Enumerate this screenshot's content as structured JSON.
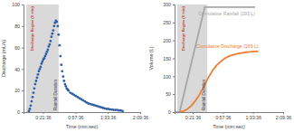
{
  "chart_data": [
    {
      "type": "scatter",
      "ylabel": "Discharge (mL/s)",
      "xlabel": "Time (min:sec)",
      "marker": "circle",
      "color": "#2e5fa8",
      "x": [
        6,
        7,
        8,
        9,
        10,
        11,
        12,
        13,
        14,
        15,
        16,
        17,
        18,
        19,
        20,
        21,
        22,
        23,
        24,
        25,
        26,
        27,
        28,
        29,
        30,
        31,
        32,
        33,
        34,
        35,
        36,
        37,
        38,
        39,
        40,
        41,
        42,
        43,
        44,
        45,
        46,
        47,
        48,
        49,
        50,
        52,
        54,
        56,
        58,
        60,
        62,
        64,
        66,
        68,
        70,
        72,
        74,
        76,
        78,
        80,
        82,
        84,
        86,
        88,
        90,
        92,
        94,
        96,
        98,
        100,
        102,
        104,
        106,
        108,
        110
      ],
      "values": [
        1,
        3,
        6,
        10,
        14,
        18,
        22,
        26,
        29,
        32,
        35,
        38,
        40,
        42,
        45,
        47,
        49,
        50,
        52,
        54,
        56,
        58,
        61,
        63,
        66,
        70,
        73,
        76,
        80,
        83,
        85,
        84,
        80,
        72,
        62,
        52,
        44,
        38,
        33,
        29,
        26,
        24,
        22,
        21,
        20,
        18,
        17,
        16,
        15,
        14,
        13,
        12,
        11,
        10,
        9,
        8,
        7.5,
        7,
        6.5,
        6,
        5.5,
        5,
        4.5,
        4,
        3.5,
        3,
        3,
        2.5,
        2.5,
        2,
        2,
        2,
        1.5,
        1.5,
        1
      ],
      "xlim": [
        0,
        129.6
      ],
      "xticks": [
        {
          "value": 21.6,
          "label": "0:21:36"
        },
        {
          "value": 57.6,
          "label": "0:57:36"
        },
        {
          "value": 93.6,
          "label": "1:33:36"
        },
        {
          "value": 129.6,
          "label": "2:09:36"
        }
      ],
      "ylim": [
        0,
        100
      ],
      "yticks": [
        0,
        20,
        40,
        60,
        80,
        100
      ],
      "annotations": [
        {
          "x": 6,
          "text": "Discharge Begins (6 min)",
          "color": "#c00000",
          "line_style": "dashed"
        },
        {
          "x0": 3,
          "x1": 39,
          "text": "Rainfall Duration",
          "color": "#d9d9d9"
        }
      ]
    },
    {
      "type": "line",
      "ylabel": "Volume (L)",
      "xlabel": "Time (min:sec)",
      "series": [
        {
          "name": "Cumulative Rainfall (293 L)",
          "color": "#a6a6a6",
          "x": [
            0,
            6,
            36,
            96
          ],
          "values": [
            0,
            0,
            293,
            293
          ]
        },
        {
          "name": "Cumulative Discharge (169 L)",
          "color": "#ed7d31",
          "x": [
            6,
            10,
            15,
            20,
            25,
            30,
            35,
            40,
            45,
            50,
            55,
            60,
            65,
            70,
            75,
            80,
            85,
            90,
            95,
            100
          ],
          "values": [
            0,
            2,
            8,
            18,
            32,
            50,
            72,
            95,
            115,
            130,
            141,
            150,
            156,
            160,
            163,
            165,
            167,
            168,
            169,
            169
          ]
        }
      ],
      "xlim": [
        0,
        129.6
      ],
      "xticks": [
        {
          "value": 21.6,
          "label": "0:21:36"
        },
        {
          "value": 57.6,
          "label": "0:57:36"
        },
        {
          "value": 93.6,
          "label": "1:33:36"
        },
        {
          "value": 129.6,
          "label": "2:09:36"
        }
      ],
      "ylim": [
        0,
        300
      ],
      "yticks": [
        0,
        50,
        100,
        150,
        200,
        250,
        300
      ],
      "annotations": [
        {
          "x": 6,
          "text": "Discharge Begins (6 min)",
          "color": "#c00000",
          "line_style": "dashed"
        },
        {
          "x0": 3,
          "x1": 39,
          "text": "Rainfall Duration",
          "color": "#d9d9d9"
        }
      ]
    }
  ]
}
